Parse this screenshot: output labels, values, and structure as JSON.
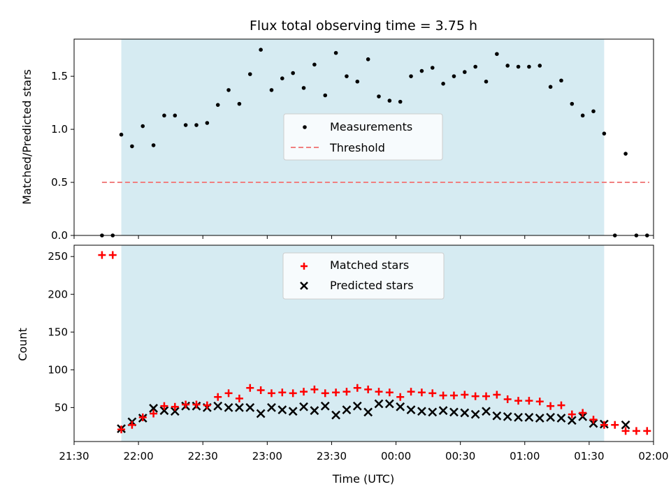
{
  "chart_data": [
    {
      "type": "scatter",
      "title": "Flux total observing time = 3.75 h",
      "xlabel": "",
      "ylabel": "Matched/Predicted stars",
      "xlim": [
        "21:30",
        "02:00"
      ],
      "ylim": [
        0,
        1.85
      ],
      "yticks": [
        "0.0",
        "0.5",
        "1.0",
        "1.5"
      ],
      "observing_window": [
        "21:52",
        "01:37"
      ],
      "legend": {
        "location": "center",
        "entries": [
          "Measurements",
          "Threshold"
        ]
      },
      "colors": {
        "measurements": "#000000",
        "threshold": "#f08080",
        "window": "#add8e6"
      },
      "threshold": {
        "name": "Threshold",
        "value": 0.5,
        "x_range": [
          "21:43",
          "01:58"
        ]
      },
      "series": [
        {
          "name": "Measurements",
          "x": [
            "21:43",
            "21:48",
            "21:52",
            "21:57",
            "22:02",
            "22:07",
            "22:12",
            "22:17",
            "22:22",
            "22:27",
            "22:32",
            "22:37",
            "22:42",
            "22:47",
            "22:52",
            "22:57",
            "23:02",
            "23:07",
            "23:12",
            "23:17",
            "23:22",
            "23:27",
            "23:32",
            "23:37",
            "23:42",
            "23:47",
            "23:52",
            "23:57",
            "00:02",
            "00:07",
            "00:12",
            "00:17",
            "00:22",
            "00:27",
            "00:32",
            "00:37",
            "00:42",
            "00:47",
            "00:52",
            "00:57",
            "01:02",
            "01:07",
            "01:12",
            "01:17",
            "01:22",
            "01:27",
            "01:32",
            "01:37",
            "01:42",
            "01:47",
            "01:52",
            "01:57"
          ],
          "y": [
            0.0,
            0.0,
            0.95,
            0.84,
            1.03,
            0.85,
            1.13,
            1.13,
            1.04,
            1.04,
            1.06,
            1.23,
            1.37,
            1.24,
            1.52,
            1.75,
            1.37,
            1.48,
            1.53,
            1.39,
            1.61,
            1.32,
            1.72,
            1.5,
            1.45,
            1.66,
            1.31,
            1.27,
            1.26,
            1.5,
            1.55,
            1.58,
            1.43,
            1.5,
            1.54,
            1.59,
            1.45,
            1.71,
            1.6,
            1.59,
            1.59,
            1.6,
            1.4,
            1.46,
            1.24,
            1.13,
            1.17,
            0.96,
            0.0,
            0.77,
            0.0,
            0.0
          ]
        }
      ]
    },
    {
      "type": "scatter",
      "title": "",
      "xlabel": "Time (UTC)",
      "ylabel": "Count",
      "xlim": [
        "21:30",
        "02:00"
      ],
      "ylim": [
        5,
        265
      ],
      "xticks": [
        "21:30",
        "22:00",
        "22:30",
        "23:00",
        "23:30",
        "00:00",
        "00:30",
        "01:00",
        "01:30",
        "02:00"
      ],
      "yticks": [
        "50",
        "100",
        "150",
        "200",
        "250"
      ],
      "observing_window": [
        "21:52",
        "01:37"
      ],
      "legend": {
        "location": "upper center",
        "entries": [
          "Matched stars",
          "Predicted stars"
        ]
      },
      "colors": {
        "matched": "#ff0000",
        "predicted": "#000000",
        "window": "#add8e6"
      },
      "x": [
        "21:43",
        "21:48",
        "21:52",
        "21:57",
        "22:02",
        "22:07",
        "22:12",
        "22:17",
        "22:22",
        "22:27",
        "22:32",
        "22:37",
        "22:42",
        "22:47",
        "22:52",
        "22:57",
        "23:02",
        "23:07",
        "23:12",
        "23:17",
        "23:22",
        "23:27",
        "23:32",
        "23:37",
        "23:42",
        "23:47",
        "23:52",
        "23:57",
        "00:02",
        "00:07",
        "00:12",
        "00:17",
        "00:22",
        "00:27",
        "00:32",
        "00:37",
        "00:42",
        "00:47",
        "00:52",
        "00:57",
        "01:02",
        "01:07",
        "01:12",
        "01:17",
        "01:22",
        "01:27",
        "01:32",
        "01:37",
        "01:42",
        "01:47",
        "01:52",
        "01:57"
      ],
      "series": [
        {
          "name": "Matched stars",
          "values": [
            252,
            252,
            21,
            27,
            37,
            42,
            52,
            51,
            54,
            54,
            53,
            64,
            69,
            62,
            76,
            73,
            69,
            70,
            69,
            71,
            74,
            69,
            70,
            71,
            76,
            74,
            71,
            70,
            64,
            71,
            70,
            69,
            66,
            66,
            67,
            65,
            65,
            67,
            61,
            59,
            59,
            58,
            52,
            53,
            41,
            43,
            34,
            27,
            27,
            19,
            19,
            19
          ]
        },
        {
          "name": "Predicted stars",
          "values": [
            null,
            null,
            22,
            31,
            36,
            49,
            46,
            45,
            52,
            52,
            50,
            52,
            50,
            50,
            50,
            42,
            50,
            47,
            45,
            51,
            46,
            52,
            40,
            47,
            52,
            44,
            55,
            55,
            51,
            47,
            45,
            44,
            46,
            44,
            43,
            41,
            45,
            39,
            38,
            37,
            37,
            36,
            37,
            36,
            33,
            38,
            29,
            28,
            null,
            27,
            null,
            null
          ]
        }
      ]
    }
  ]
}
